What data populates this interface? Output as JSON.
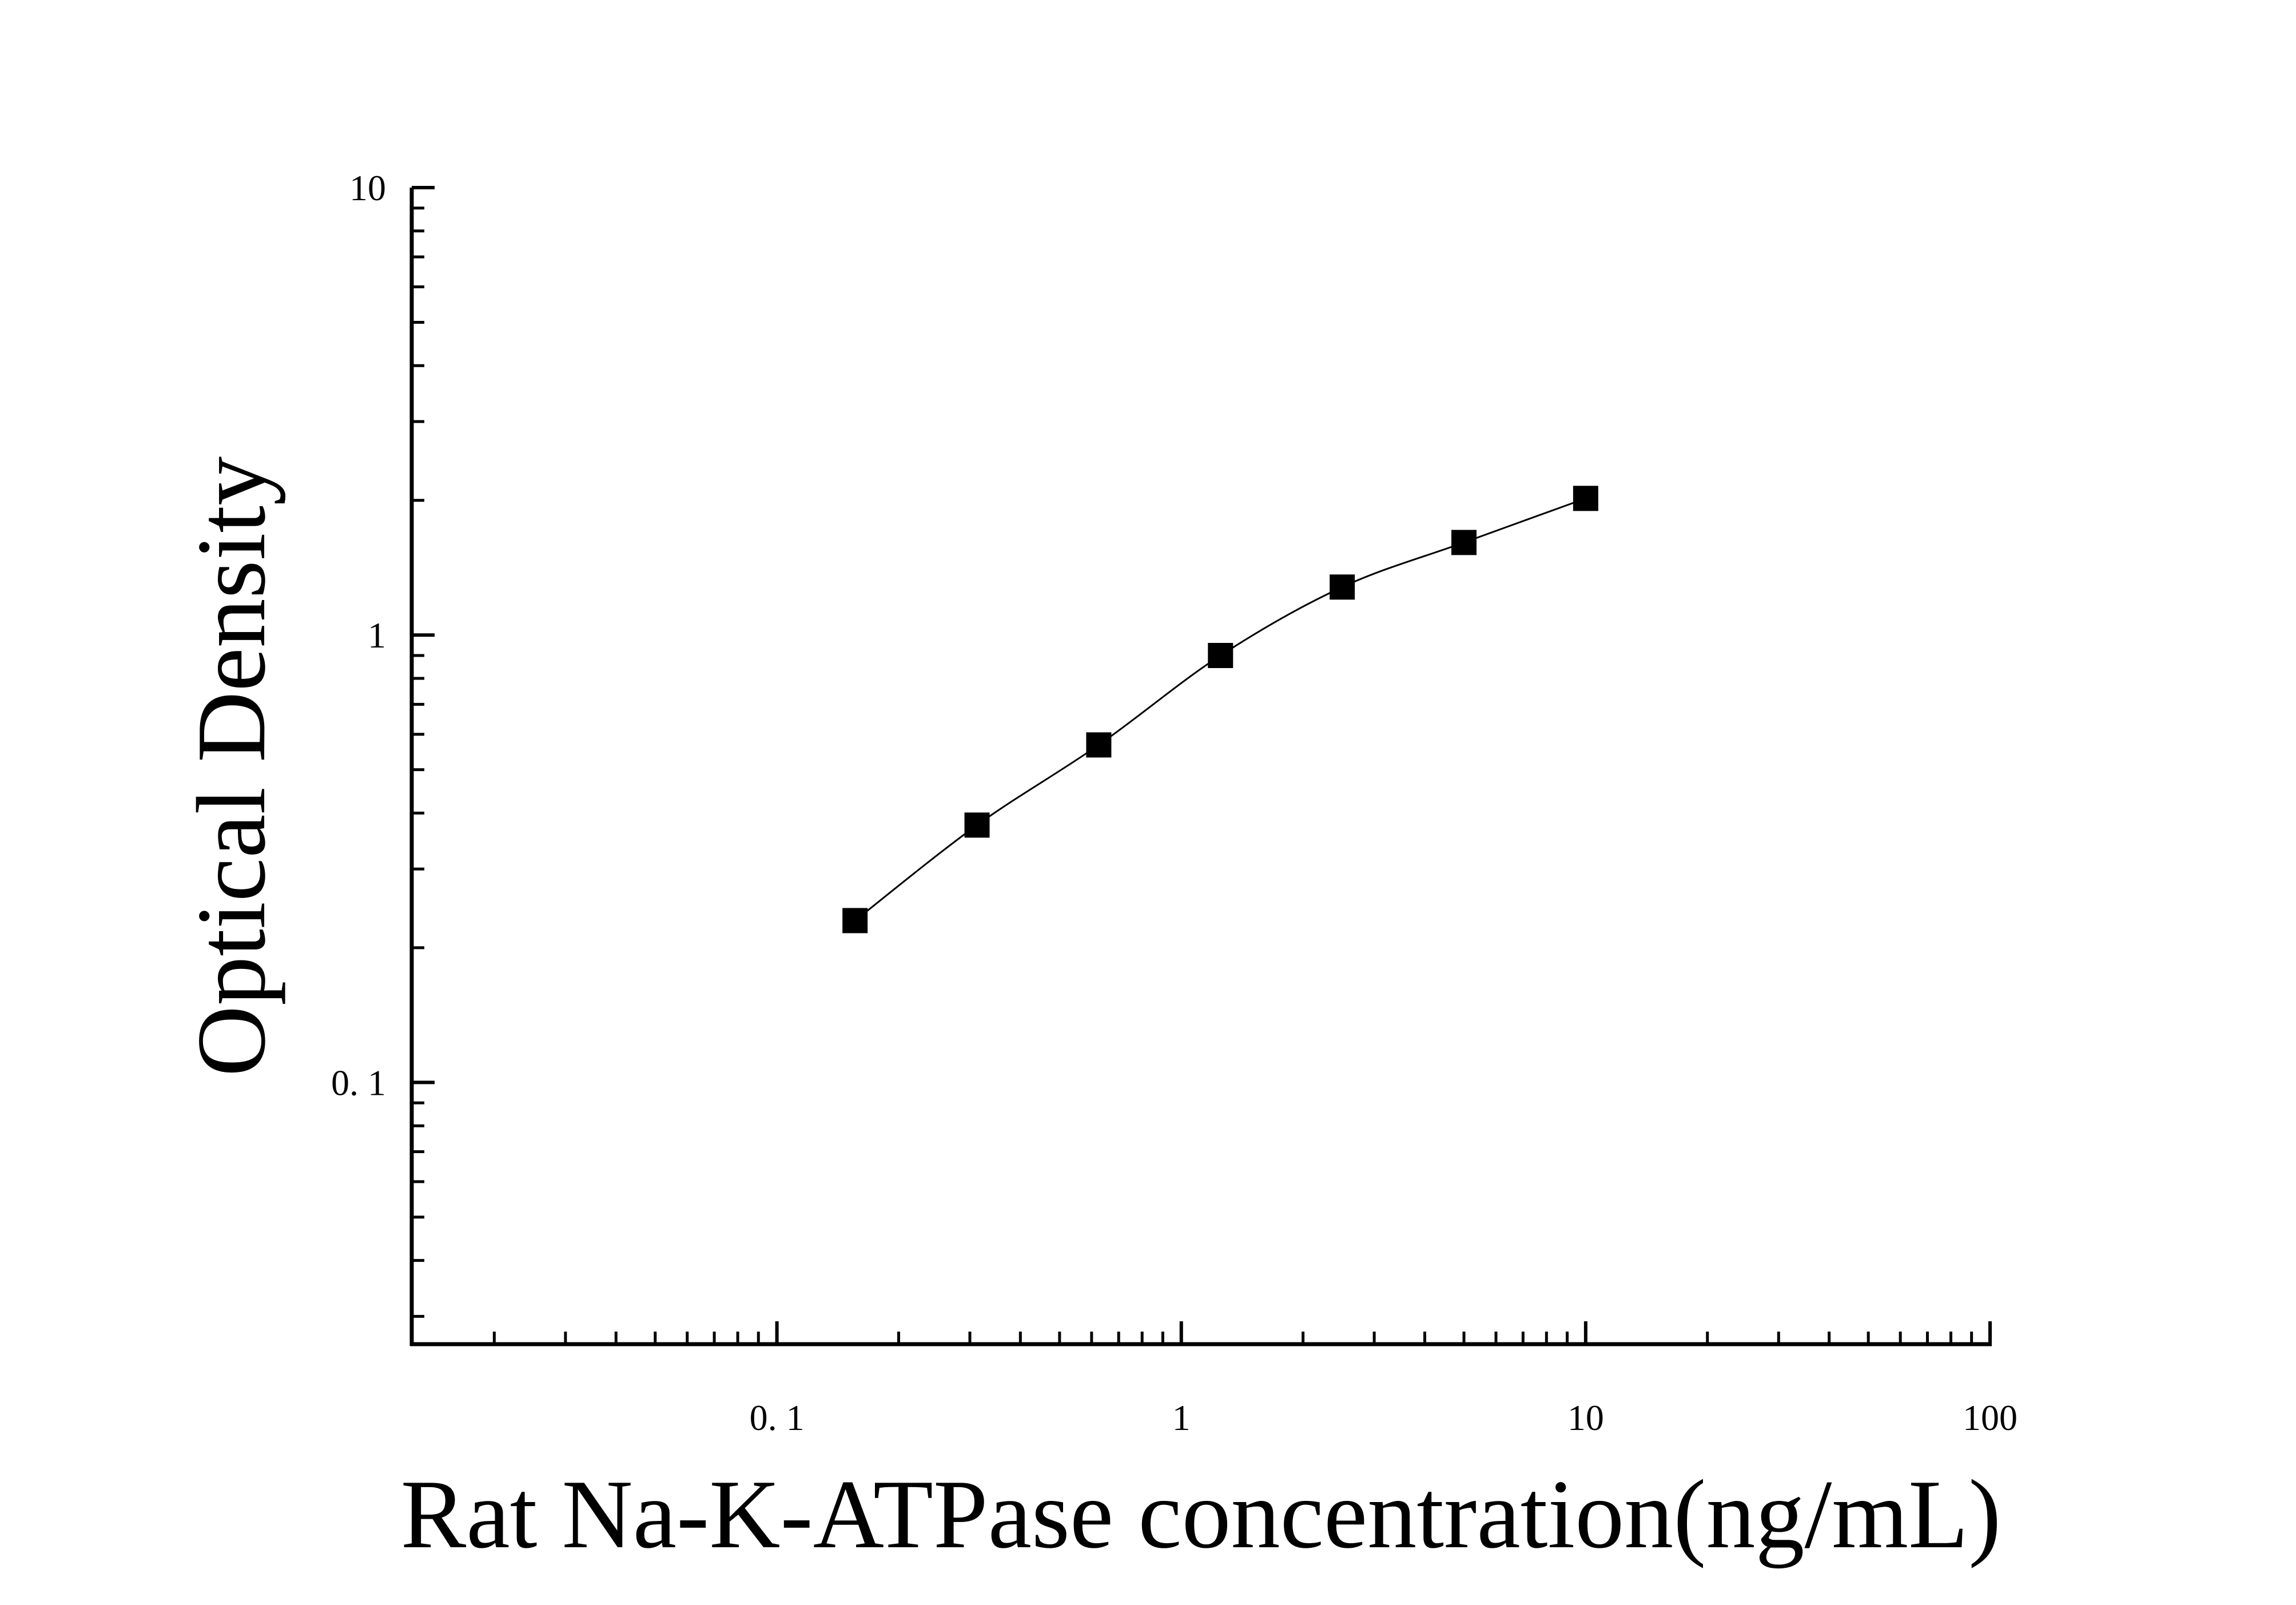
{
  "chart_data": {
    "type": "scatter",
    "xlabel": "Rat Na-K-ATPase concentration(ng/mL)",
    "ylabel": "Optical Density",
    "xscale": "log",
    "yscale": "log",
    "xlim": [
      0.0125,
      100
    ],
    "ylim": [
      0.026,
      10
    ],
    "xticks": [
      {
        "value": 0.1,
        "label": "0. 1"
      },
      {
        "value": 1,
        "label": "1"
      },
      {
        "value": 10,
        "label": "10"
      },
      {
        "value": 100,
        "label": "100"
      }
    ],
    "yticks": [
      {
        "value": 0.1,
        "label": "0. 1"
      },
      {
        "value": 1,
        "label": "1"
      },
      {
        "value": 10,
        "label": "10"
      }
    ],
    "grid": false,
    "marker": "square",
    "color": "#000000",
    "points": {
      "x": [
        0.156,
        0.3125,
        0.625,
        1.25,
        2.5,
        5,
        10
      ],
      "y": [
        0.23,
        0.376,
        0.568,
        0.9,
        1.28,
        1.61,
        2.02
      ]
    },
    "fit": "smooth curve through points"
  }
}
